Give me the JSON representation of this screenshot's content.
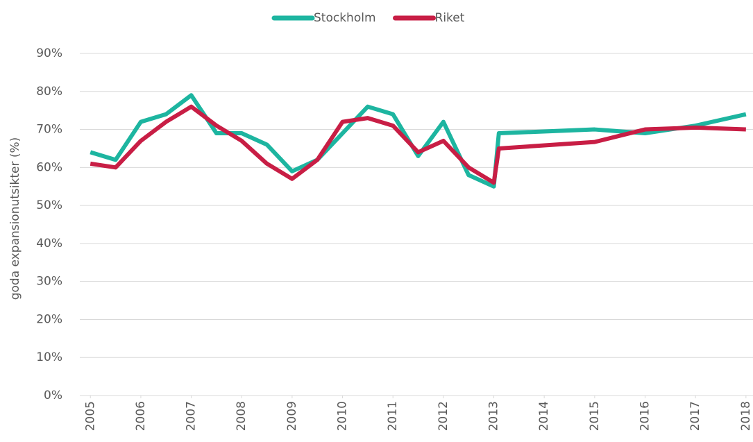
{
  "chart_data": {
    "type": "line",
    "y_label": "goda expansionutsikter (%)",
    "x": [
      2005,
      2005.5,
      2006,
      2006.5,
      2007,
      2007.5,
      2008,
      2008.5,
      2009,
      2009.5,
      2010,
      2010.5,
      2011,
      2011.5,
      2012,
      2012.5,
      2013,
      2013.1,
      2015,
      2016,
      2017,
      2018
    ],
    "series": [
      {
        "name": "Stockholm",
        "color": "#1db5a0",
        "values": [
          64,
          62,
          72,
          74,
          79,
          69,
          69,
          66,
          59,
          62,
          69,
          76,
          74,
          63,
          72,
          58,
          55,
          69,
          70,
          69,
          71,
          74
        ]
      },
      {
        "name": "Riket",
        "color": "#c81e45",
        "values": [
          61,
          60,
          67,
          72,
          76,
          71,
          67,
          61,
          57,
          62,
          72,
          73,
          71,
          64,
          67,
          60,
          56,
          65,
          66.7,
          70,
          70.5,
          70
        ]
      }
    ],
    "xlim": [
      2004.79,
      2018.14
    ],
    "xticks": [
      2005,
      2006,
      2007,
      2008,
      2009,
      2010,
      2011,
      2012,
      2013,
      2014,
      2015,
      2016,
      2017,
      2018
    ],
    "ylim": [
      0,
      90
    ],
    "yticks": [
      {
        "value": 0,
        "label": "0%"
      },
      {
        "value": 10,
        "label": "10%"
      },
      {
        "value": 20,
        "label": "20%"
      },
      {
        "value": 30,
        "label": "30%"
      },
      {
        "value": 40,
        "label": "40%"
      },
      {
        "value": 50,
        "label": "50%"
      },
      {
        "value": 60,
        "label": "60%"
      },
      {
        "value": 70,
        "label": "70%"
      },
      {
        "value": 80,
        "label": "80%"
      },
      {
        "value": 90,
        "label": "90%"
      }
    ],
    "grid": true,
    "legend": "top"
  }
}
